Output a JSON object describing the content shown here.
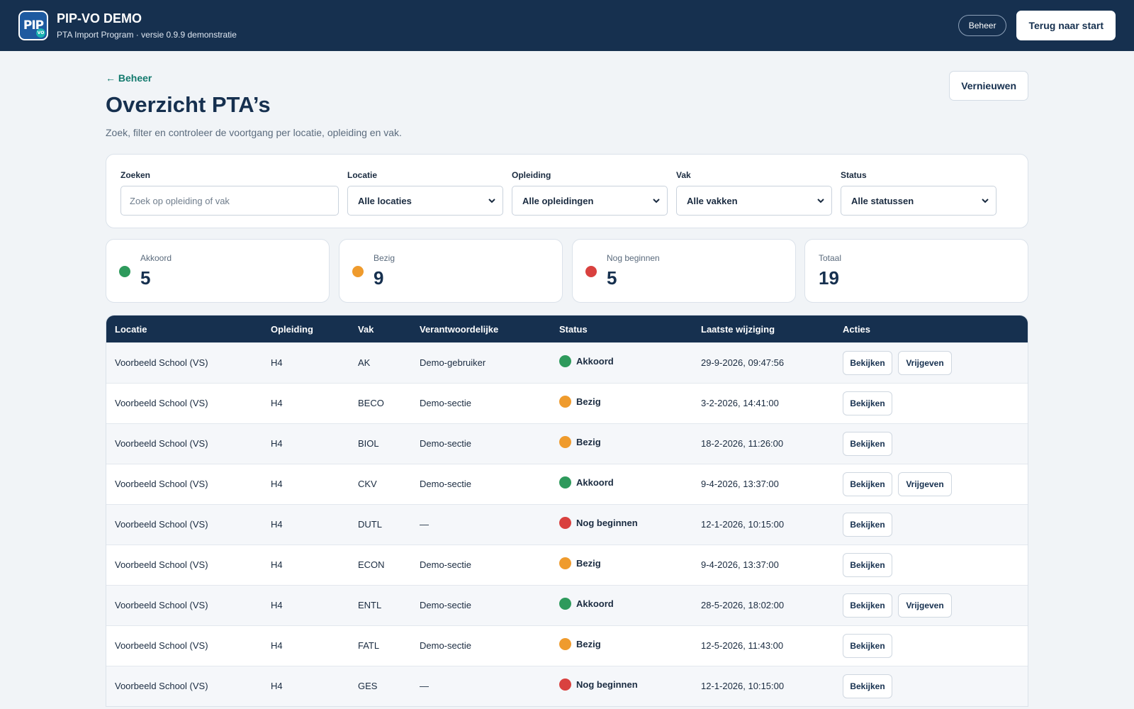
{
  "header": {
    "logo_text": "PIP",
    "logo_badge": "VO",
    "app_name": "PIP-VO DEMO",
    "subtitle": "PTA Import Program · versie 0.9.9 demonstratie",
    "beheer_label": "Beheer",
    "start_label": "Terug naar start"
  },
  "page": {
    "back_label": "← Beheer",
    "title": "Overzicht PTA’s",
    "subtitle": "Zoek, filter en controleer de voortgang per locatie, opleiding en vak.",
    "refresh_label": "Vernieuwen"
  },
  "filters": {
    "search_label": "Zoeken",
    "search_placeholder": "Zoek op opleiding of vak",
    "locatie_label": "Locatie",
    "locatie_value": "Alle locaties",
    "opleiding_label": "Opleiding",
    "opleiding_value": "Alle opleidingen",
    "vak_label": "Vak",
    "vak_value": "Alle vakken",
    "status_label": "Status",
    "status_value": "Alle statussen"
  },
  "stats": {
    "akkoord_label": "Akkoord",
    "akkoord_value": "5",
    "bezig_label": "Bezig",
    "bezig_value": "9",
    "nog_label": "Nog beginnen",
    "nog_value": "5",
    "totaal_label": "Totaal",
    "totaal_value": "19"
  },
  "colors": {
    "akkoord": "#2e9a5c",
    "bezig": "#ef9b2d",
    "nog": "#d9413f",
    "header_bg": "#16304f",
    "back_link": "#137a6e"
  },
  "table": {
    "headers": {
      "locatie": "Locatie",
      "opleiding": "Opleiding",
      "vak": "Vak",
      "verantwoordelijke": "Verantwoordelijke",
      "status": "Status",
      "gewijzigd": "Laatste wijziging",
      "acties": "Acties"
    },
    "view_label": "Bekijken",
    "release_label": "Vrijgeven",
    "rows": [
      {
        "locatie": "Voorbeeld School (VS)",
        "opleiding": "H4",
        "vak": "AK",
        "verantwoordelijke": "Demo-gebruiker",
        "status": "Akkoord",
        "status_key": "akkoord",
        "gewijzigd": "29-9-2026, 09:47:56",
        "release": true
      },
      {
        "locatie": "Voorbeeld School (VS)",
        "opleiding": "H4",
        "vak": "BECO",
        "verantwoordelijke": "Demo-sectie",
        "status": "Bezig",
        "status_key": "bezig",
        "gewijzigd": "3-2-2026, 14:41:00",
        "release": false
      },
      {
        "locatie": "Voorbeeld School (VS)",
        "opleiding": "H4",
        "vak": "BIOL",
        "verantwoordelijke": "Demo-sectie",
        "status": "Bezig",
        "status_key": "bezig",
        "gewijzigd": "18-2-2026, 11:26:00",
        "release": false
      },
      {
        "locatie": "Voorbeeld School (VS)",
        "opleiding": "H4",
        "vak": "CKV",
        "verantwoordelijke": "Demo-sectie",
        "status": "Akkoord",
        "status_key": "akkoord",
        "gewijzigd": "9-4-2026, 13:37:00",
        "release": true
      },
      {
        "locatie": "Voorbeeld School (VS)",
        "opleiding": "H4",
        "vak": "DUTL",
        "verantwoordelijke": "—",
        "status": "Nog beginnen",
        "status_key": "nog",
        "gewijzigd": "12-1-2026, 10:15:00",
        "release": false
      },
      {
        "locatie": "Voorbeeld School (VS)",
        "opleiding": "H4",
        "vak": "ECON",
        "verantwoordelijke": "Demo-sectie",
        "status": "Bezig",
        "status_key": "bezig",
        "gewijzigd": "9-4-2026, 13:37:00",
        "release": false
      },
      {
        "locatie": "Voorbeeld School (VS)",
        "opleiding": "H4",
        "vak": "ENTL",
        "verantwoordelijke": "Demo-sectie",
        "status": "Akkoord",
        "status_key": "akkoord",
        "gewijzigd": "28-5-2026, 18:02:00",
        "release": true
      },
      {
        "locatie": "Voorbeeld School (VS)",
        "opleiding": "H4",
        "vak": "FATL",
        "verantwoordelijke": "Demo-sectie",
        "status": "Bezig",
        "status_key": "bezig",
        "gewijzigd": "12-5-2026, 11:43:00",
        "release": false
      },
      {
        "locatie": "Voorbeeld School (VS)",
        "opleiding": "H4",
        "vak": "GES",
        "verantwoordelijke": "—",
        "status": "Nog beginnen",
        "status_key": "nog",
        "gewijzigd": "12-1-2026, 10:15:00",
        "release": false
      }
    ]
  }
}
